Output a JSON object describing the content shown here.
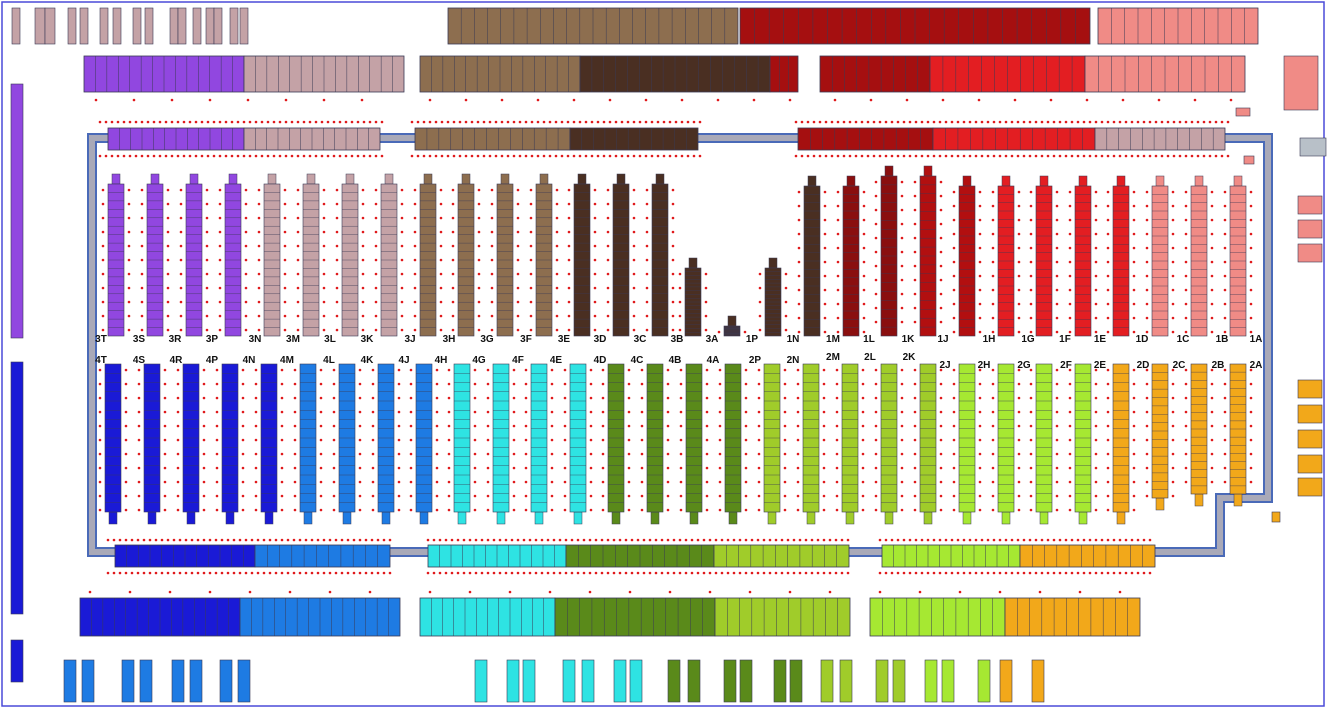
{
  "palette": {
    "frame": "#4a4ad8",
    "loop_border": "#4a6ab8",
    "loop_fill": "#a9a9b8",
    "cell_stroke": "#3a3a55",
    "marker_red": "#e0191b",
    "marker_teal": "#1a8a7a",
    "label": "#111111"
  },
  "groups": {
    "g3": {
      "labels": [
        "3T",
        "3S",
        "3R",
        "3P",
        "3N",
        "3M",
        "3L",
        "3K",
        "3J",
        "3H",
        "3G",
        "3F",
        "3E",
        "3D",
        "3C",
        "3B",
        "3A"
      ],
      "colors": [
        "#9147e0",
        "#9147e0",
        "#9147e0",
        "#9147e0",
        "#c4a2a6",
        "#c4a2a6",
        "#c4a2a6",
        "#c4a2a6",
        "#8d6e4f",
        "#8d6e4f",
        "#8d6e4f",
        "#8d6e4f",
        "#4a2f22",
        "#4a2f22",
        "#4a2f22",
        "#4a2f22",
        "#4a2f22"
      ]
    },
    "g1": {
      "labels": [
        "1P",
        "1N",
        "1M",
        "1L",
        "1K",
        "1J",
        "1H",
        "1G",
        "1F",
        "1E",
        "1D",
        "1C",
        "1B",
        "1A"
      ],
      "colors": [
        "#4a2f22",
        "#4a2f22",
        "#8a0f0f",
        "#8a0f0f",
        "#b20f10",
        "#b20f10",
        "#e31e22",
        "#e31e22",
        "#e31e22",
        "#e31e22",
        "#f08b86",
        "#f08b86",
        "#f08b86",
        "#f08b86"
      ]
    },
    "g4": {
      "labels": [
        "4T",
        "4S",
        "4R",
        "4P",
        "4N",
        "4M",
        "4L",
        "4K",
        "4J",
        "4H",
        "4G",
        "4F",
        "4E",
        "4D",
        "4C",
        "4B",
        "4A"
      ],
      "colors": [
        "#1a1ad6",
        "#1a1ad6",
        "#1a1ad6",
        "#1a1ad6",
        "#1a1ad6",
        "#1e7be3",
        "#1e7be3",
        "#1e7be3",
        "#1e7be3",
        "#2ee3e3",
        "#2ee3e3",
        "#2ee3e3",
        "#2ee3e3",
        "#5a8a1a",
        "#5a8a1a",
        "#5a8a1a",
        "#5a8a1a"
      ]
    },
    "g2": {
      "labels": [
        "2P",
        "2N",
        "2M",
        "2L",
        "2K",
        "2J",
        "2H",
        "2G",
        "2F",
        "2E",
        "2D",
        "2C",
        "2B",
        "2A"
      ],
      "colors": [
        "#a0cc2a",
        "#a0cc2a",
        "#a0cc2a",
        "#a0cc2a",
        "#a0cc2a",
        "#a6e832",
        "#a6e832",
        "#a6e832",
        "#a6e832",
        "#f2a81a",
        "#f2a81a",
        "#f2a81a",
        "#f2a81a",
        "#f2a81a"
      ]
    }
  }
}
